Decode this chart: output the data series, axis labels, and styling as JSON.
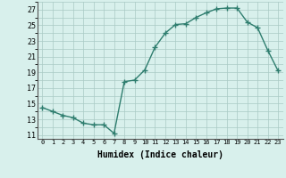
{
  "x": [
    0,
    1,
    2,
    3,
    4,
    5,
    6,
    7,
    8,
    9,
    10,
    11,
    12,
    13,
    14,
    15,
    16,
    17,
    18,
    19,
    20,
    21,
    22,
    23
  ],
  "y": [
    14.5,
    14.0,
    13.5,
    13.2,
    12.5,
    12.3,
    12.3,
    11.2,
    17.8,
    18.0,
    19.3,
    22.2,
    24.0,
    25.1,
    25.2,
    26.0,
    26.6,
    27.1,
    27.2,
    27.2,
    25.4,
    24.7,
    21.8,
    19.2
  ],
  "line_color": "#2e7d6e",
  "marker": "+",
  "marker_color": "#2e7d6e",
  "bg_color": "#d8f0ec",
  "grid_color": "#aacac5",
  "xlabel": "Humidex (Indice chaleur)",
  "ylabel_ticks": [
    11,
    13,
    15,
    17,
    19,
    21,
    23,
    25,
    27
  ],
  "xlim": [
    -0.5,
    23.5
  ],
  "ylim": [
    10.5,
    28.0
  ]
}
